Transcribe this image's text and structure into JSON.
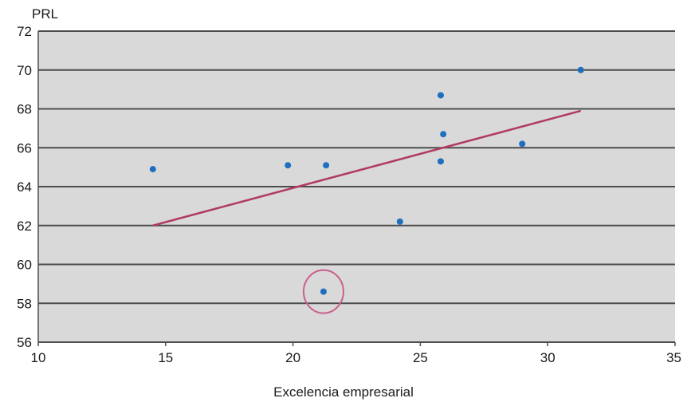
{
  "chart_data": {
    "type": "scatter",
    "title": "",
    "xlabel": "Excelencia empresarial",
    "ylabel": "PRL",
    "xlim": [
      10,
      35
    ],
    "ylim": [
      56,
      72
    ],
    "xticks": [
      10,
      15,
      20,
      25,
      30,
      35
    ],
    "yticks": [
      56,
      58,
      60,
      62,
      64,
      66,
      68,
      70,
      72
    ],
    "grid": "horizontal",
    "background_color": "#d9d9d9",
    "gridline_color": "#4d4d4d",
    "point_color": "#1f6fbf",
    "trendline_color": "#b03a64",
    "highlight_color": "#c9608f",
    "series": [
      {
        "points": [
          {
            "x": 14.5,
            "y": 64.9
          },
          {
            "x": 19.8,
            "y": 65.1
          },
          {
            "x": 21.3,
            "y": 65.1
          },
          {
            "x": 21.2,
            "y": 58.6
          },
          {
            "x": 24.2,
            "y": 62.2
          },
          {
            "x": 25.8,
            "y": 68.7
          },
          {
            "x": 25.9,
            "y": 66.7
          },
          {
            "x": 25.8,
            "y": 65.3
          },
          {
            "x": 29.0,
            "y": 66.2
          },
          {
            "x": 31.3,
            "y": 70.0
          }
        ]
      }
    ],
    "trendline": {
      "x": [
        14.5,
        31.3
      ],
      "y": [
        62.0,
        67.9
      ]
    },
    "highlighted_point": {
      "x": 21.2,
      "y": 58.6
    }
  }
}
